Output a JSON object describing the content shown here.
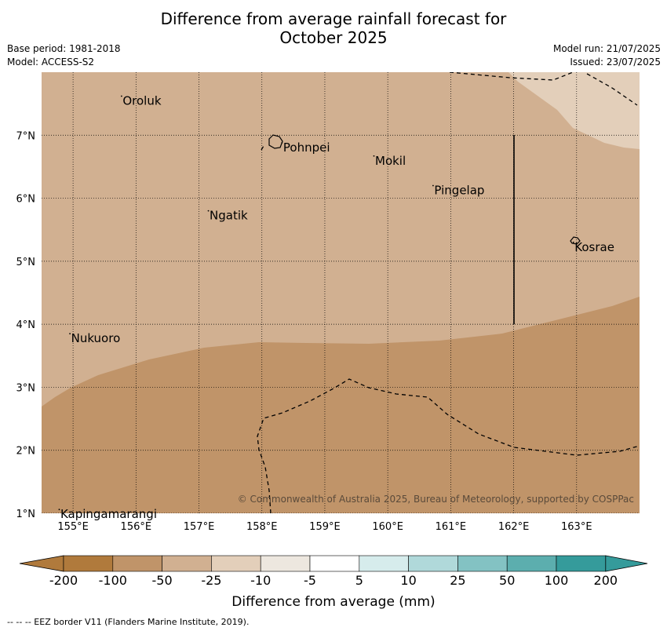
{
  "title_line1": "Difference from average rainfall forecast for",
  "title_line2": "October 2025",
  "base_period": "Base period: 1981-2018",
  "model": "Model: ACCESS-S2",
  "model_run": "Model run: 21/07/2025",
  "issued": "Issued: 23/07/2025",
  "map": {
    "lon_range": [
      154.5,
      164.0
    ],
    "lat_range": [
      1.0,
      8.0
    ],
    "lon_ticks": [
      "155°E",
      "156°E",
      "157°E",
      "158°E",
      "159°E",
      "160°E",
      "161°E",
      "162°E",
      "163°E"
    ],
    "lat_ticks": [
      "7°N",
      "6°N",
      "5°N",
      "4°N",
      "3°N",
      "2°N",
      "1°N"
    ],
    "places": [
      {
        "name": "Oroluk",
        "lon": 155.77,
        "lat": 7.62
      },
      {
        "name": "Pohnpei",
        "lon": 158.32,
        "lat": 6.88
      },
      {
        "name": "Mokil",
        "lon": 159.78,
        "lat": 6.67
      },
      {
        "name": "Pingelap",
        "lon": 160.72,
        "lat": 6.2
      },
      {
        "name": "Ngatik",
        "lon": 157.15,
        "lat": 5.8
      },
      {
        "name": "Kosrae",
        "lon": 162.95,
        "lat": 5.3
      },
      {
        "name": "Nukuoro",
        "lon": 154.95,
        "lat": 3.85
      },
      {
        "name": "Kapingamarangi",
        "lon": 154.78,
        "lat": 1.06
      }
    ],
    "copyright": "© Commonwealth of Australia 2025, Bureau of Meteorology, supported by COSPPac"
  },
  "colors": {
    "c_m200": "#b07a3c",
    "c_m100": "#c09469",
    "c_m50": "#d1b091",
    "c_m25": "#e3cfba",
    "c_m10": "#ede7df",
    "c_0": "#ffffff",
    "c_5": "#d6ecec",
    "c_10": "#b0d9da",
    "c_25": "#83c2c3",
    "c_50": "#5caeae",
    "c_100": "#359b9b"
  },
  "legend": {
    "tick_labels": [
      "-200",
      "-100",
      "-50",
      "-25",
      "-10",
      "-5",
      "5",
      "10",
      "25",
      "50",
      "100",
      "200"
    ],
    "label": "Difference from average (mm)"
  },
  "footer_note": "--  --  -- EEZ border V11 (Flanders Marine Institute, 2019)."
}
